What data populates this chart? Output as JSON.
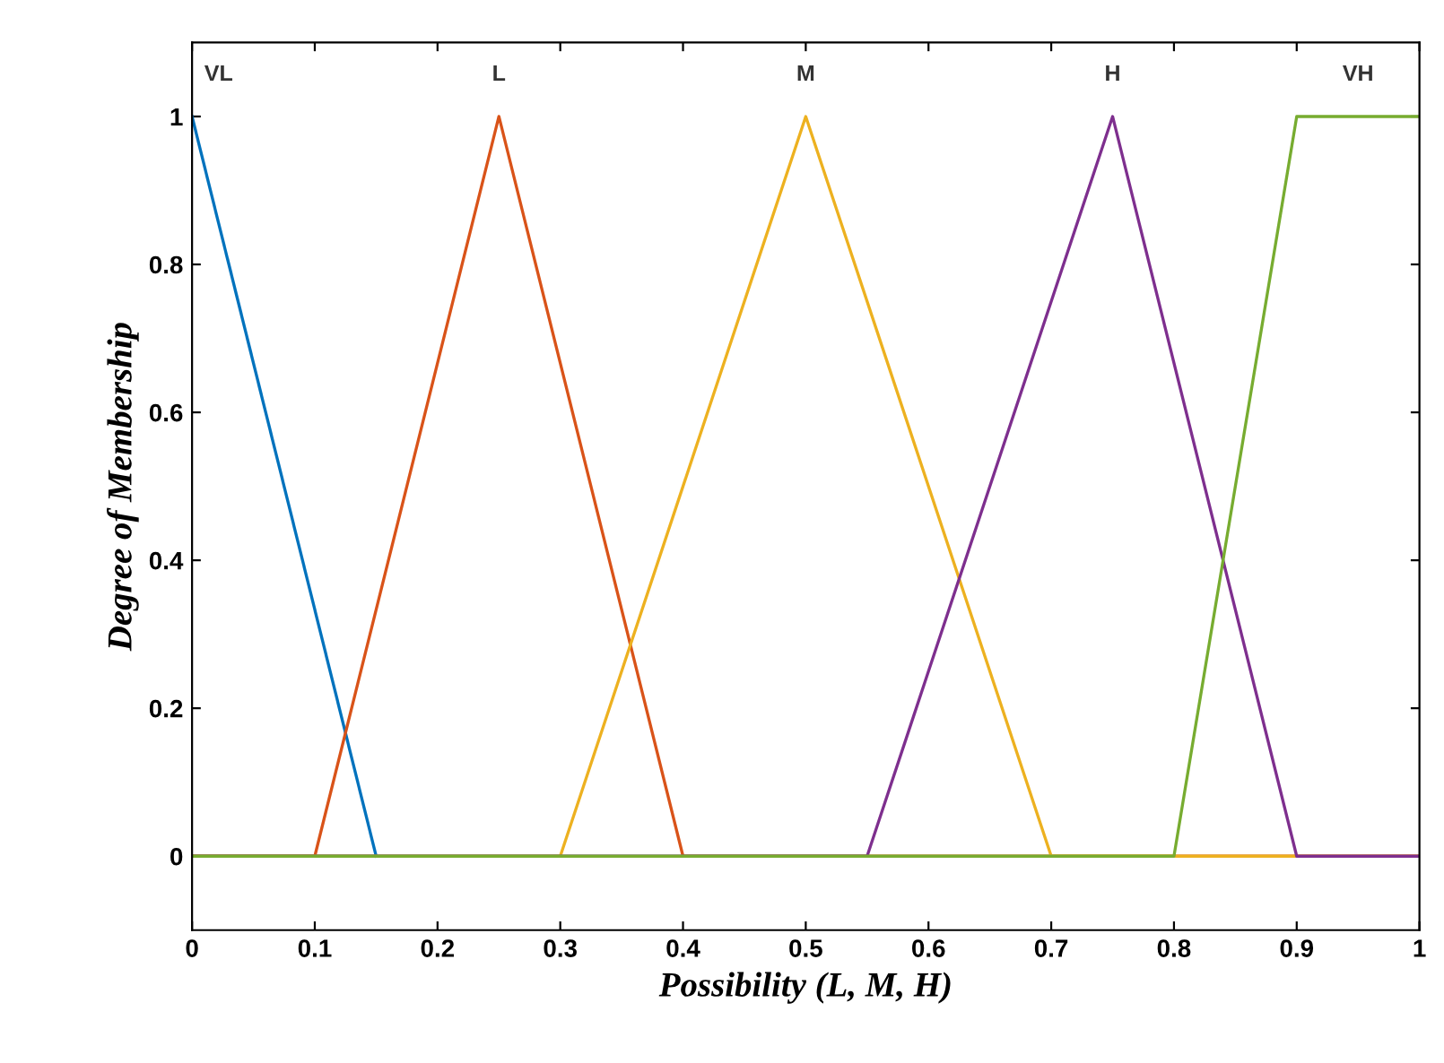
{
  "chart_data": {
    "type": "line",
    "xlabel": "Possibility (L, M, H)",
    "ylabel": "Degree of Membership",
    "xlim": [
      0,
      1
    ],
    "xticks": [
      0,
      0.1,
      0.2,
      0.3,
      0.4,
      0.5,
      0.6,
      0.7,
      0.8,
      0.9,
      1
    ],
    "ylim": [
      -0.1,
      1.1
    ],
    "yticks": [
      0,
      0.2,
      0.4,
      0.6,
      0.8,
      1
    ],
    "grid": false,
    "legend": false,
    "marker": "none",
    "line_style": "solid",
    "series": [
      {
        "name": "VL",
        "color": "#0072bd",
        "x": [
          0,
          0.15
        ],
        "values": [
          1,
          0
        ]
      },
      {
        "name": "L",
        "color": "#d95319",
        "x": [
          0,
          0.1,
          0.25,
          0.4,
          1
        ],
        "values": [
          0,
          0,
          1,
          0,
          0
        ]
      },
      {
        "name": "M",
        "color": "#edb120",
        "x": [
          0,
          0.3,
          0.5,
          0.7,
          1
        ],
        "values": [
          0,
          0,
          1,
          0,
          0
        ]
      },
      {
        "name": "H",
        "color": "#7e2f8e",
        "x": [
          0,
          0.55,
          0.75,
          0.9,
          1
        ],
        "values": [
          0,
          0,
          1,
          0,
          0
        ]
      },
      {
        "name": "VH",
        "color": "#77ac30",
        "x": [
          0,
          0.8,
          0.9,
          1
        ],
        "values": [
          0,
          0,
          1,
          1
        ]
      }
    ]
  }
}
